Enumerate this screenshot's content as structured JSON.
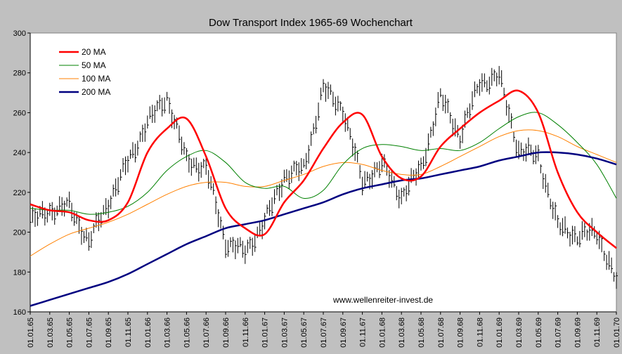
{
  "chart_data": {
    "type": "line",
    "title": "Dow Transport Index 1965-69 Wochenchart",
    "xlabel": "",
    "ylabel": "",
    "ylim": [
      160,
      300
    ],
    "yticks": [
      "160",
      "180",
      "200",
      "220",
      "240",
      "260",
      "280",
      "300"
    ],
    "x_ticks": [
      "01.01.65",
      "01.03.65",
      "01.05.65",
      "01.07.65",
      "01.09.65",
      "01.11.65",
      "01.01.66",
      "01.03.66",
      "01.05.66",
      "01.07.66",
      "01.09.66",
      "01.11.66",
      "01.01.67",
      "01.03.67",
      "01.05.67",
      "01.07.67",
      "01.09.67",
      "01.11.67",
      "01.01.68",
      "01.03.68",
      "01.05.68",
      "01.07.68",
      "01.09.68",
      "01.11.68",
      "01.01.69",
      "01.03.69",
      "01.05.69",
      "01.07.69",
      "01.09.69",
      "01.11.69",
      "01.01.70"
    ],
    "grid": false,
    "legend_position": "top-left",
    "annotation": "www.wellenreiter-invest.de",
    "price_bars": {
      "name": "",
      "color": "#000000",
      "x": [
        "01.01.65",
        "01.03.65",
        "01.05.65",
        "01.07.65",
        "01.09.65",
        "01.11.65",
        "01.01.66",
        "01.03.66",
        "01.05.66",
        "01.07.66",
        "01.09.66",
        "01.11.66",
        "01.01.67",
        "01.03.67",
        "01.05.67",
        "01.07.67",
        "01.09.67",
        "01.11.67",
        "01.01.68",
        "01.03.68",
        "01.05.68",
        "01.07.68",
        "01.09.68",
        "01.11.68",
        "01.01.69",
        "01.03.69",
        "01.05.69",
        "01.07.69",
        "01.09.69",
        "01.11.69",
        "01.01.70"
      ],
      "values": [
        205,
        211,
        213,
        195,
        215,
        235,
        255,
        268,
        236,
        232,
        195,
        190,
        205,
        228,
        232,
        272,
        262,
        225,
        234,
        218,
        232,
        268,
        248,
        275,
        278,
        241,
        238,
        203,
        198,
        200,
        175
      ]
    },
    "series": [
      {
        "name": "20 MA",
        "color": "#ff0000",
        "width": 2.5,
        "x": [
          "01.01.65",
          "01.03.65",
          "01.05.65",
          "01.07.65",
          "01.09.65",
          "01.11.65",
          "01.01.66",
          "01.03.66",
          "01.05.66",
          "01.07.66",
          "01.09.66",
          "01.11.66",
          "01.01.67",
          "01.03.67",
          "01.05.67",
          "01.07.67",
          "01.09.67",
          "01.11.67",
          "01.01.68",
          "01.03.68",
          "01.05.68",
          "01.07.68",
          "01.09.68",
          "01.11.68",
          "01.01.69",
          "01.03.69",
          "01.05.69",
          "01.07.69",
          "01.09.69",
          "01.11.69",
          "01.01.70"
        ],
        "values": [
          214,
          211,
          210,
          206,
          206,
          215,
          240,
          252,
          257,
          238,
          212,
          202,
          199,
          215,
          226,
          242,
          255,
          259,
          238,
          227,
          228,
          243,
          252,
          260,
          266,
          271,
          260,
          230,
          210,
          200,
          192
        ]
      },
      {
        "name": "50 MA",
        "color": "#008000",
        "width": 1,
        "x": [
          "01.01.65",
          "01.03.65",
          "01.05.65",
          "01.07.65",
          "01.09.65",
          "01.11.65",
          "01.01.66",
          "01.03.66",
          "01.05.66",
          "01.07.66",
          "01.09.66",
          "01.11.66",
          "01.01.67",
          "01.03.67",
          "01.05.67",
          "01.07.67",
          "01.09.67",
          "01.11.67",
          "01.01.68",
          "01.03.68",
          "01.05.68",
          "01.07.68",
          "01.09.68",
          "01.11.68",
          "01.01.69",
          "01.03.69",
          "01.05.69",
          "01.07.69",
          "01.09.69",
          "01.11.69",
          "01.01.70"
        ],
        "values": [
          212,
          211,
          211,
          209,
          210,
          213,
          220,
          231,
          238,
          241,
          235,
          225,
          222,
          223,
          217,
          221,
          234,
          242,
          244,
          243,
          241,
          242,
          241,
          245,
          252,
          258,
          260,
          254,
          245,
          234,
          217
        ]
      },
      {
        "name": "100 MA",
        "color": "#ff8000",
        "width": 1,
        "x": [
          "01.01.65",
          "01.03.65",
          "01.05.65",
          "01.07.65",
          "01.09.65",
          "01.11.65",
          "01.01.66",
          "01.03.66",
          "01.05.66",
          "01.07.66",
          "01.09.66",
          "01.11.66",
          "01.01.67",
          "01.03.67",
          "01.05.67",
          "01.07.67",
          "01.09.67",
          "01.11.67",
          "01.01.68",
          "01.03.68",
          "01.05.68",
          "01.07.68",
          "01.09.68",
          "01.11.68",
          "01.01.69",
          "01.03.69",
          "01.05.69",
          "01.07.69",
          "01.09.69",
          "01.11.69",
          "01.01.70"
        ],
        "values": [
          188,
          194,
          199,
          202,
          205,
          209,
          214,
          219,
          223,
          225,
          225,
          223,
          223,
          226,
          229,
          233,
          235,
          234,
          231,
          229,
          229,
          233,
          238,
          243,
          248,
          251,
          251,
          248,
          243,
          239,
          235
        ]
      },
      {
        "name": "200 MA",
        "color": "#000080",
        "width": 2.5,
        "x": [
          "01.01.65",
          "01.03.65",
          "01.05.65",
          "01.07.65",
          "01.09.65",
          "01.11.65",
          "01.01.66",
          "01.03.66",
          "01.05.66",
          "01.07.66",
          "01.09.66",
          "01.11.66",
          "01.01.67",
          "01.03.67",
          "01.05.67",
          "01.07.67",
          "01.09.67",
          "01.11.67",
          "01.01.68",
          "01.03.68",
          "01.05.68",
          "01.07.68",
          "01.09.68",
          "01.11.68",
          "01.01.69",
          "01.03.69",
          "01.05.69",
          "01.07.69",
          "01.09.69",
          "01.11.69",
          "01.01.70"
        ],
        "values": [
          163,
          166,
          169,
          172,
          175,
          179,
          184,
          189,
          194,
          198,
          202,
          204,
          206,
          209,
          212,
          215,
          219,
          222,
          224,
          226,
          227,
          229,
          231,
          233,
          236,
          238,
          240,
          240,
          239,
          237,
          234
        ]
      }
    ]
  }
}
